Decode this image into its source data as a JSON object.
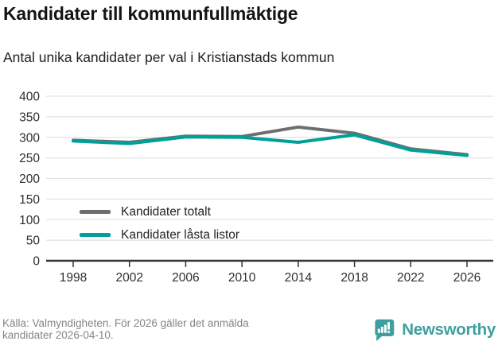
{
  "title": "Kandidater till kommunfullmäktige",
  "subtitle": "Antal unika kandidater per val i Kristianstads kommun",
  "chart_data": {
    "type": "line",
    "x": [
      1998,
      2002,
      2006,
      2010,
      2014,
      2018,
      2022,
      2026
    ],
    "series": [
      {
        "name": "Kandidater totalt",
        "color": "#6e6e72",
        "values": [
          293,
          288,
          303,
          302,
          325,
          310,
          272,
          258
        ]
      },
      {
        "name": "Kandidater låsta listor",
        "color": "#00a09a",
        "values": [
          291,
          285,
          301,
          300,
          288,
          306,
          269,
          256
        ]
      }
    ],
    "ylim": [
      0,
      400
    ],
    "yticks": [
      0,
      50,
      100,
      150,
      200,
      250,
      300,
      350,
      400
    ],
    "grid": true,
    "legend_position": "inside-bottom-left",
    "axis_color": "#333333",
    "grid_color": "#e2e2e2",
    "tick_label_color": "#2e2e2e"
  },
  "footer": {
    "source_line1": "Källa: Valmyndigheten. För 2026 gäller det anmälda",
    "source_line2": "kandidater 2026-04-10.",
    "brand": "Newsworthy",
    "brand_color": "#3f9fa0"
  }
}
